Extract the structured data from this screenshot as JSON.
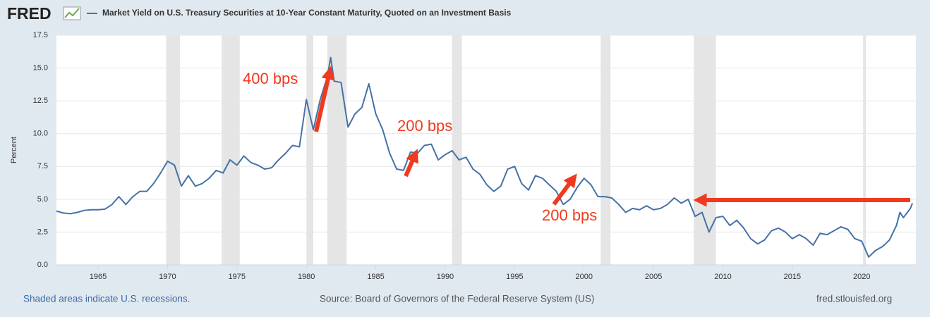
{
  "chart_data": {
    "type": "line",
    "logo": "FRED",
    "y_label": "Percent",
    "note": "Shaded areas indicate U.S. recessions.",
    "source": "Source: Board of Governors of the Federal Reserve System (US)",
    "site": "fred.stlouisfed.org",
    "annotations": [
      "400 bps",
      "200 bps",
      "200 bps"
    ],
    "xlim": [
      1962,
      2023.9
    ],
    "xticks": [
      1965,
      1970,
      1975,
      1980,
      1985,
      1990,
      1995,
      2000,
      2005,
      2010,
      2015,
      2020
    ],
    "ylim": [
      0,
      17.5
    ],
    "yticks": [
      {
        "value": 0,
        "label": "0.0"
      },
      2.5,
      {
        "value": 5,
        "label": "5.0"
      },
      7.5,
      {
        "value": 10,
        "label": "10.0"
      },
      12.5,
      {
        "value": 15,
        "label": "15.0"
      },
      17.5
    ],
    "grid": true,
    "recession_color": "#e5e5e5",
    "recessions": [
      [
        1969.9,
        1970.9
      ],
      [
        1973.9,
        1975.2
      ],
      [
        1980.0,
        1980.5
      ],
      [
        1981.5,
        1982.9
      ],
      [
        1990.5,
        1991.2
      ],
      [
        2001.2,
        2001.9
      ],
      [
        2007.9,
        2009.5
      ],
      [
        2020.1,
        2020.3
      ]
    ],
    "x": [
      1962,
      1962.5,
      1963,
      1963.5,
      1964,
      1964.5,
      1965,
      1965.5,
      1966,
      1966.5,
      1967,
      1967.5,
      1968,
      1968.5,
      1969,
      1969.5,
      1970,
      1970.5,
      1971,
      1971.5,
      1972,
      1972.5,
      1973,
      1973.5,
      1974,
      1974.5,
      1975,
      1975.5,
      1976,
      1976.5,
      1977,
      1977.5,
      1978,
      1978.5,
      1979,
      1979.5,
      1980,
      1980.5,
      1981,
      1981.5,
      1981.75,
      1982,
      1982.5,
      1983,
      1983.5,
      1984,
      1984.5,
      1985,
      1985.5,
      1986,
      1986.5,
      1987,
      1987.5,
      1988,
      1988.5,
      1989,
      1989.5,
      1990,
      1990.5,
      1991,
      1991.5,
      1992,
      1992.5,
      1993,
      1993.5,
      1994,
      1994.5,
      1995,
      1995.5,
      1996,
      1996.5,
      1997,
      1997.5,
      1998,
      1998.5,
      1999,
      1999.5,
      2000,
      2000.5,
      2001,
      2001.5,
      2002,
      2002.5,
      2003,
      2003.5,
      2004,
      2004.5,
      2005,
      2005.5,
      2006,
      2006.5,
      2007,
      2007.5,
      2008,
      2008.5,
      2009,
      2009.5,
      2010,
      2010.5,
      2011,
      2011.5,
      2012,
      2012.5,
      2013,
      2013.5,
      2014,
      2014.5,
      2015,
      2015.5,
      2016,
      2016.5,
      2017,
      2017.5,
      2018,
      2018.5,
      2019,
      2019.5,
      2020,
      2020.5,
      2021,
      2021.5,
      2022,
      2022.5,
      2022.75,
      2023,
      2023.5,
      2023.65
    ],
    "series": [
      {
        "name": "Market Yield on U.S. Treasury Securities at 10-Year Constant Maturity, Quoted on an Investment Basis",
        "color": "#4572a7",
        "values": [
          4.1,
          3.95,
          3.9,
          4.0,
          4.15,
          4.2,
          4.2,
          4.25,
          4.6,
          5.2,
          4.6,
          5.2,
          5.6,
          5.6,
          6.2,
          7.0,
          7.9,
          7.6,
          6.0,
          6.8,
          6.0,
          6.2,
          6.6,
          7.2,
          7.0,
          8.0,
          7.6,
          8.3,
          7.8,
          7.6,
          7.3,
          7.4,
          8.0,
          8.5,
          9.1,
          9.0,
          12.6,
          10.3,
          12.6,
          14.3,
          15.8,
          14.0,
          13.9,
          10.5,
          11.5,
          12.0,
          13.8,
          11.5,
          10.3,
          8.5,
          7.3,
          7.2,
          8.6,
          8.5,
          9.1,
          9.2,
          8.0,
          8.4,
          8.7,
          8.0,
          8.2,
          7.3,
          6.9,
          6.1,
          5.6,
          6.0,
          7.3,
          7.5,
          6.2,
          5.7,
          6.8,
          6.6,
          6.1,
          5.6,
          4.6,
          5.0,
          5.9,
          6.6,
          6.1,
          5.2,
          5.2,
          5.1,
          4.6,
          4.0,
          4.3,
          4.2,
          4.5,
          4.2,
          4.3,
          4.6,
          5.1,
          4.7,
          5.0,
          3.7,
          4.0,
          2.5,
          3.6,
          3.7,
          3.0,
          3.4,
          2.8,
          2.0,
          1.6,
          1.9,
          2.6,
          2.8,
          2.5,
          2.0,
          2.3,
          2.0,
          1.5,
          2.4,
          2.3,
          2.6,
          2.9,
          2.7,
          2.0,
          1.8,
          0.6,
          1.1,
          1.4,
          1.9,
          3.0,
          4.0,
          3.6,
          4.3,
          4.7
        ]
      }
    ]
  }
}
